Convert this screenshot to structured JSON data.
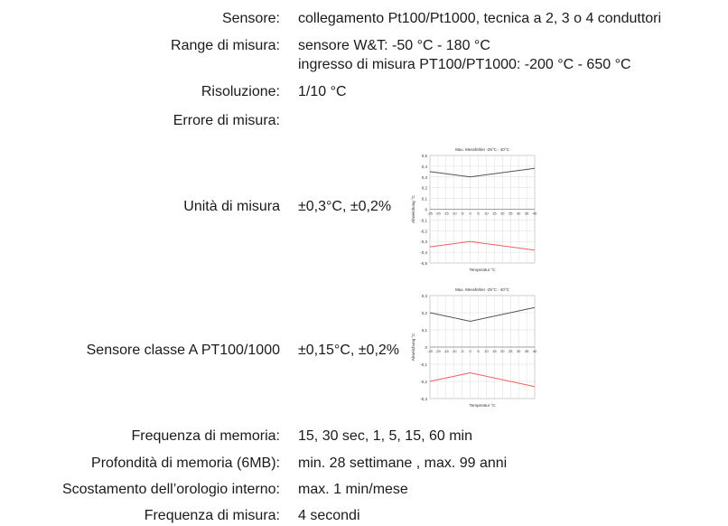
{
  "rows": {
    "sensore": {
      "label": "Sensore:",
      "value": "collegamento Pt100/Pt1000, tecnica a 2, 3 o 4 conduttori"
    },
    "range": {
      "label": "Range di misura:",
      "value1": "sensore W&T: -50 °C - 180 °C",
      "value2": "ingresso di misura PT100/PT1000: -200 °C - 650 °C"
    },
    "risoluzione": {
      "label": "Risoluzione:",
      "value": "1/10 °C"
    },
    "errore": {
      "label": "Errore di misura:"
    },
    "unita": {
      "label": "Unità di misura",
      "value": "±0,3°C, ±0,2%"
    },
    "classe_a": {
      "label": "Sensore classe A PT100/1000",
      "value": "±0,15°C, ±0,2%"
    },
    "frequenza_memoria": {
      "label": "Frequenza di memoria:",
      "value": "15, 30 sec, 1, 5, 15, 60 min"
    },
    "profondita": {
      "label": "Profondità di memoria (6MB):",
      "value": "min. 28 settimane , max. 99 anni"
    },
    "scostamento": {
      "label": "Scostamento dell’orologio interno:",
      "value": "max. 1 min/mese"
    },
    "frequenza_misura": {
      "label": "Frequenza di misura:",
      "value": "4 secondi"
    }
  },
  "chart_data": [
    {
      "type": "line",
      "title": "Max. Messfehler -25°C - 40°C",
      "xlabel": "Temperatur °C",
      "ylabel": "Abweichung °C",
      "x": [
        -25,
        -20,
        -15,
        -10,
        -5,
        0,
        5,
        10,
        15,
        20,
        25,
        30,
        35,
        40
      ],
      "xlim": [
        -25,
        40
      ],
      "ylim": [
        -0.5,
        0.5
      ],
      "yticks": [
        "0,5",
        "0,4",
        "0,3",
        "0,2",
        "0,1",
        "0",
        "-0,1",
        "-0,2",
        "-0,3",
        "-0,4",
        "-0,5"
      ],
      "grid": true,
      "series": [
        {
          "color": "#555555",
          "points": [
            [
              -25,
              0.35
            ],
            [
              0,
              0.3
            ],
            [
              40,
              0.38
            ]
          ]
        },
        {
          "color": "#f06060",
          "points": [
            [
              -25,
              -0.35
            ],
            [
              0,
              -0.3
            ],
            [
              40,
              -0.38
            ]
          ]
        }
      ]
    },
    {
      "type": "line",
      "title": "Max. Messfehler -25°C - 40°C",
      "xlabel": "Temperatur °C",
      "ylabel": "Abweichung °C",
      "x": [
        -25,
        -20,
        -15,
        -10,
        -5,
        0,
        5,
        10,
        15,
        20,
        25,
        30,
        35,
        40
      ],
      "xlim": [
        -25,
        40
      ],
      "ylim": [
        -0.3,
        0.3
      ],
      "yticks": [
        "0,3",
        "0,2",
        "0,1",
        "0",
        "-0,1",
        "-0,2",
        "-0,3"
      ],
      "grid": true,
      "series": [
        {
          "color": "#555555",
          "points": [
            [
              -25,
              0.2
            ],
            [
              0,
              0.15
            ],
            [
              40,
              0.23
            ]
          ]
        },
        {
          "color": "#f06060",
          "points": [
            [
              -25,
              -0.2
            ],
            [
              0,
              -0.15
            ],
            [
              40,
              -0.23
            ]
          ]
        }
      ]
    }
  ]
}
